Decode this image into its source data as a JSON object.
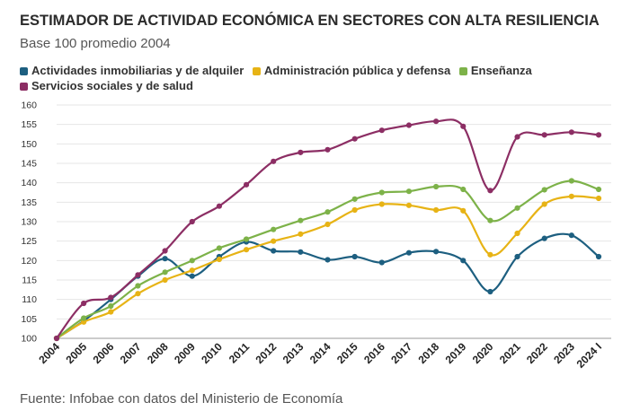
{
  "header": {
    "title": "ESTIMADOR DE ACTIVIDAD ECONÓMICA EN SECTORES CON ALTA RESILIENCIA",
    "subtitle": "Base 100 promedio 2004"
  },
  "footer": {
    "source": "Fuente: Infobae con datos del Ministerio de Economía"
  },
  "chart_data": {
    "type": "line",
    "title": "ESTIMADOR DE ACTIVIDAD ECONÓMICA EN SECTORES CON ALTA RESILIENCIA",
    "subtitle": "Base 100 promedio 2004",
    "x": [
      "2004",
      "2005",
      "2006",
      "2007",
      "2008",
      "2009",
      "2010",
      "2011",
      "2012",
      "2013",
      "2014",
      "2015",
      "2016",
      "2017",
      "2018",
      "2019",
      "2020",
      "2021",
      "2022",
      "2023",
      "2024 I"
    ],
    "yticks": [
      100,
      105,
      110,
      115,
      120,
      125,
      130,
      135,
      140,
      145,
      150,
      155,
      160
    ],
    "ylim": [
      100,
      160
    ],
    "grid": true,
    "legend": "top-left",
    "series": [
      {
        "name": "Actividades inmobiliarias y de alquiler",
        "color": "#1d5f80",
        "values": [
          100,
          104.5,
          110,
          116,
          120.5,
          116,
          121,
          124.8,
          122.5,
          122.2,
          120.2,
          121,
          119.5,
          122,
          122.3,
          120,
          112,
          121,
          125.7,
          126.5,
          121
        ]
      },
      {
        "name": "Administración pública y defensa",
        "color": "#e7b315",
        "values": [
          100,
          104.2,
          106.8,
          111.5,
          115,
          117.5,
          120.3,
          122.8,
          125,
          126.8,
          129.3,
          133,
          134.5,
          134.2,
          133,
          132.8,
          121.5,
          127,
          134.5,
          136.5,
          136
        ]
      },
      {
        "name": "Enseñanza",
        "color": "#7db249",
        "values": [
          100,
          105.2,
          108.3,
          113.5,
          117,
          120,
          123.2,
          125.5,
          128,
          130.3,
          132.5,
          135.8,
          137.5,
          137.8,
          139,
          138.3,
          130.3,
          133.5,
          138.2,
          140.5,
          138.3
        ]
      },
      {
        "name": "Servicios sociales y de salud",
        "color": "#8c2e64",
        "values": [
          100,
          109,
          110.5,
          116.3,
          122.5,
          130,
          134,
          139.5,
          145.5,
          147.8,
          148.5,
          151.3,
          153.5,
          154.8,
          155.8,
          154.5,
          138,
          151.8,
          152.3,
          153,
          152.3
        ]
      }
    ]
  }
}
